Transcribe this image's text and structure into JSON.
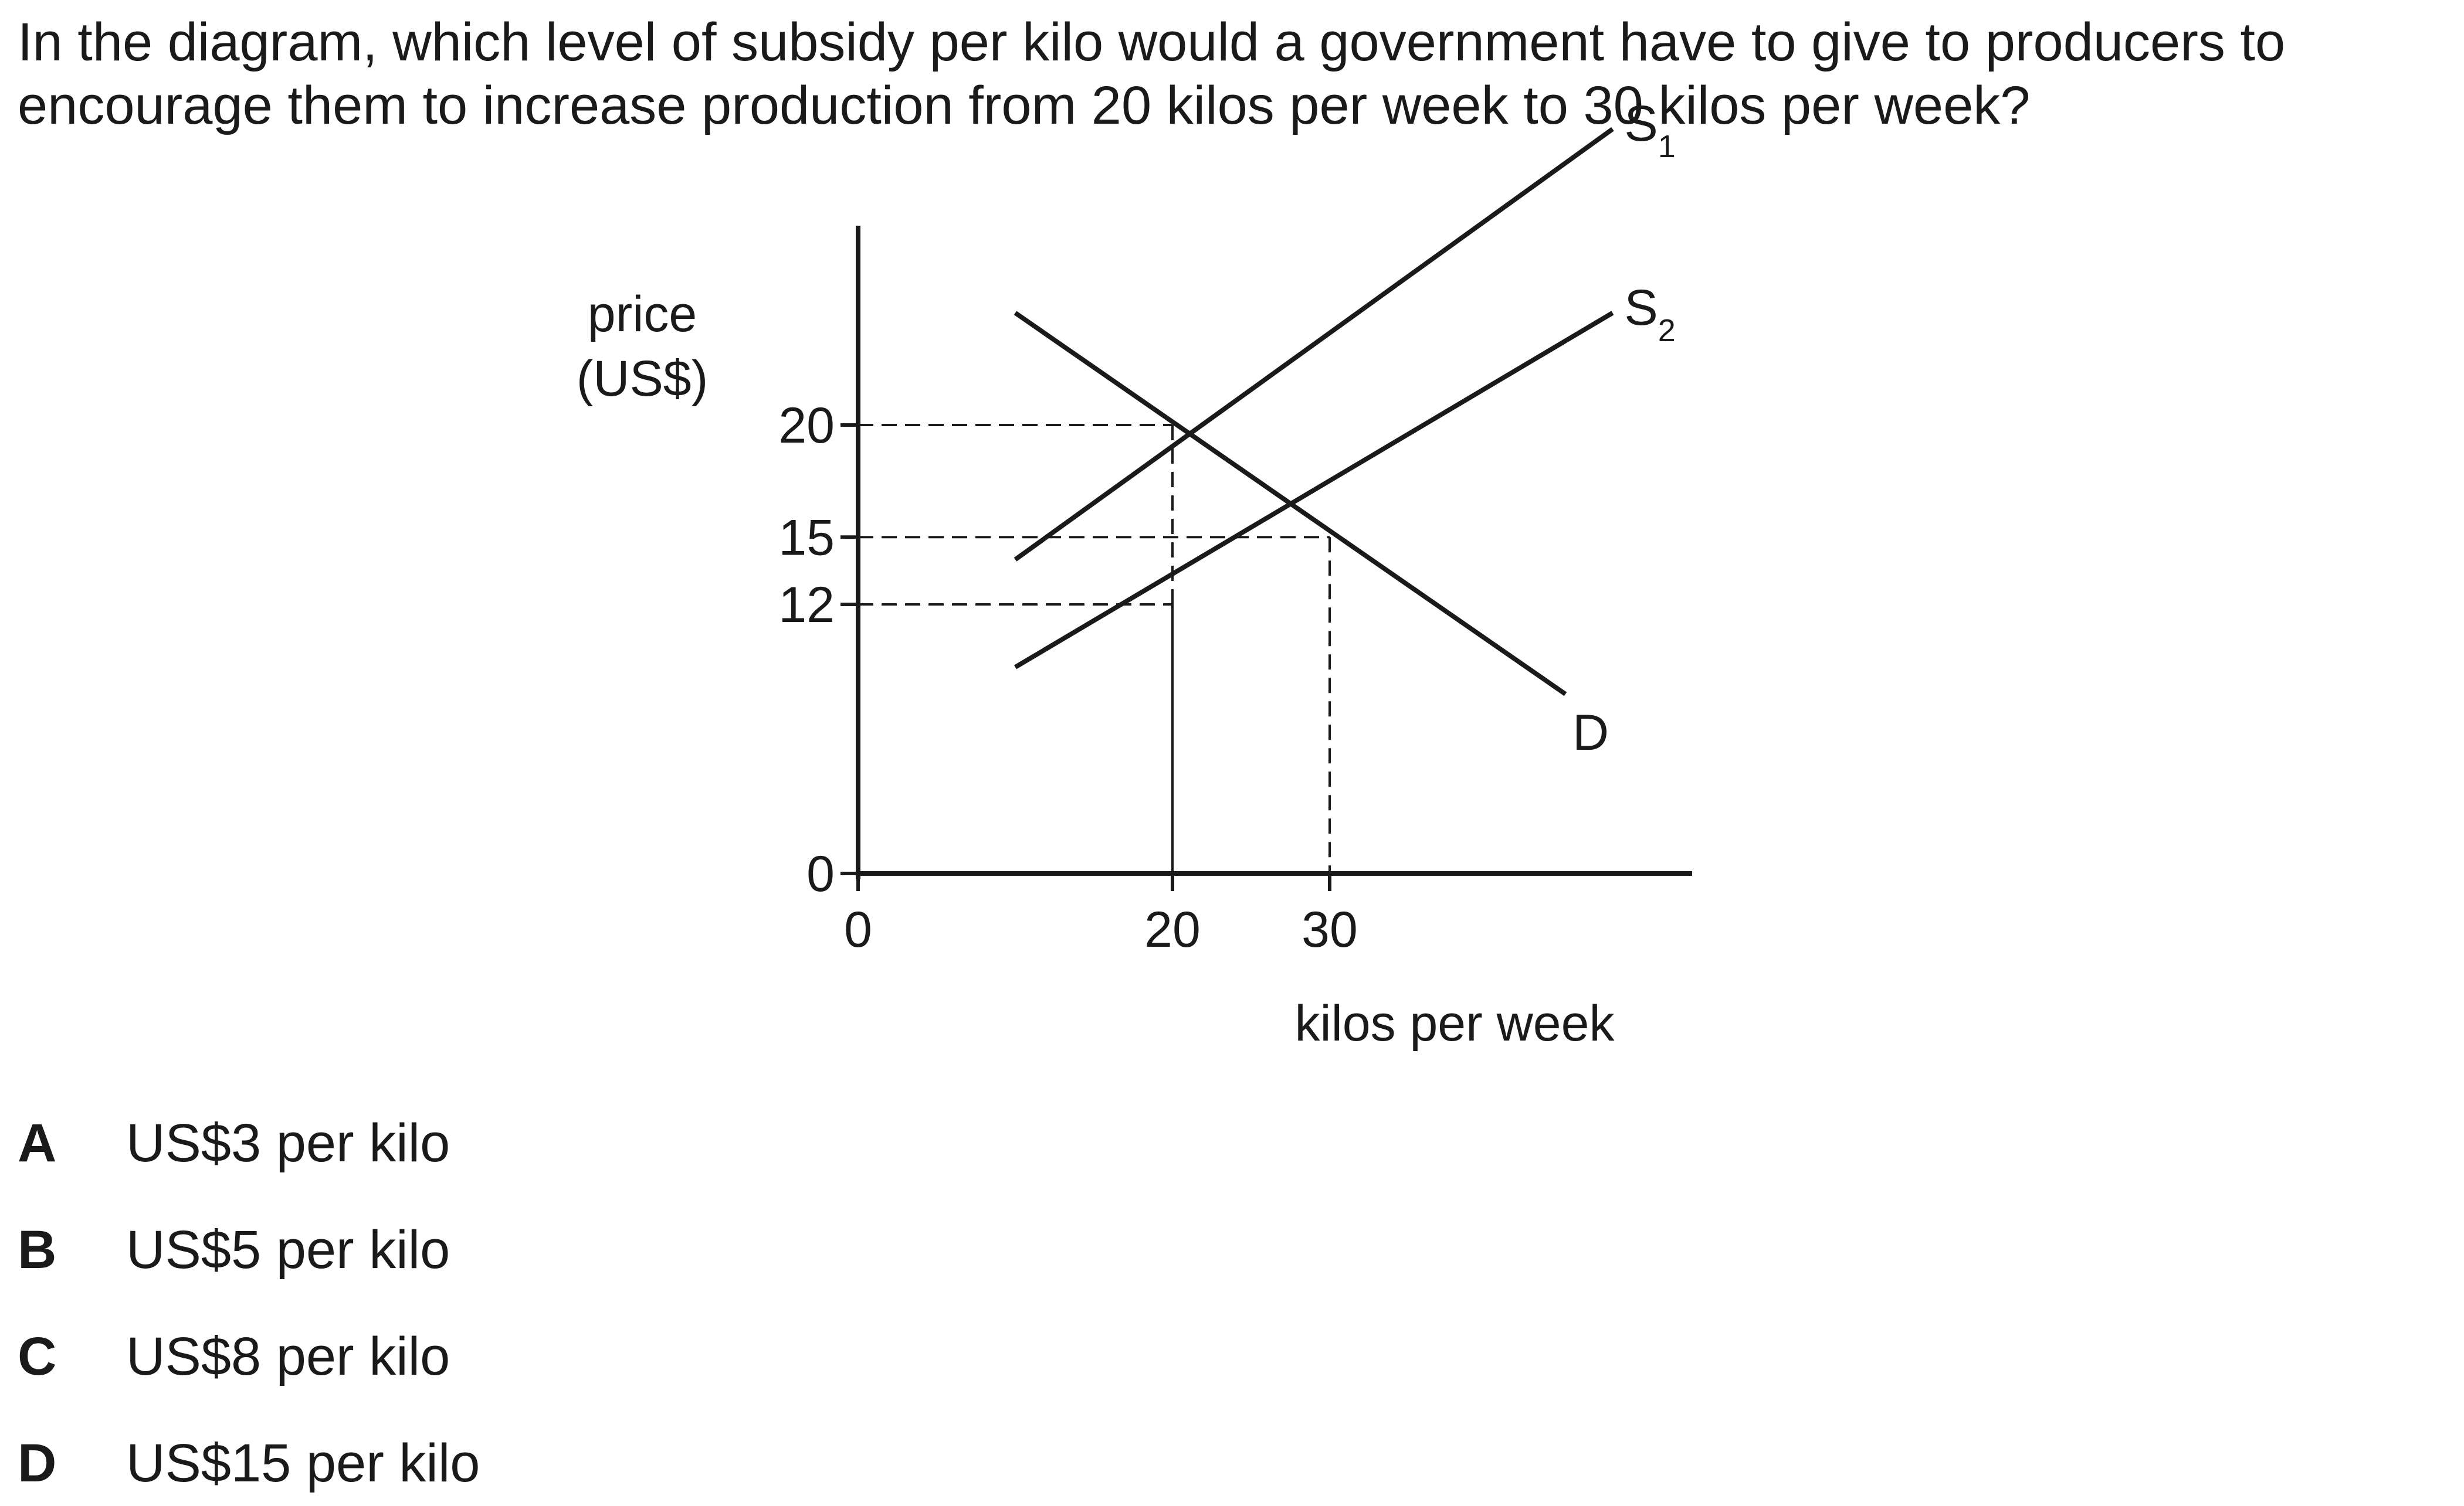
{
  "question": {
    "line1": "In the diagram, which level of subsidy per kilo would a government have to give to producers to",
    "line2": "encourage them to increase production from 20 kilos per week to 30 kilos per week?"
  },
  "chart_data": {
    "type": "line",
    "ylabel": [
      "price",
      "(US$)"
    ],
    "xlabel": "kilos per week",
    "y_ticks": [
      0,
      12,
      15,
      20
    ],
    "x_ticks": [
      0,
      20,
      30
    ],
    "series": [
      {
        "name": "S1",
        "label_main": "S",
        "label_sub": "1",
        "points": [
          [
            10,
            14
          ],
          [
            48,
            33.2
          ]
        ]
      },
      {
        "name": "S2",
        "label_main": "S",
        "label_sub": "2",
        "points": [
          [
            10,
            9.2
          ],
          [
            48,
            25
          ]
        ]
      },
      {
        "name": "D",
        "label_main": "D",
        "label_sub": "",
        "points": [
          [
            10,
            25
          ],
          [
            45,
            8
          ]
        ]
      }
    ],
    "reference_lines": [
      {
        "x": 20,
        "y": 20
      },
      {
        "x": 30,
        "y": 15
      },
      {
        "x": 20,
        "y": 12
      }
    ]
  },
  "options": [
    {
      "letter": "A",
      "text": "US$3 per kilo"
    },
    {
      "letter": "B",
      "text": "US$5 per kilo"
    },
    {
      "letter": "C",
      "text": "US$8 per kilo"
    },
    {
      "letter": "D",
      "text": "US$15 per kilo"
    }
  ]
}
